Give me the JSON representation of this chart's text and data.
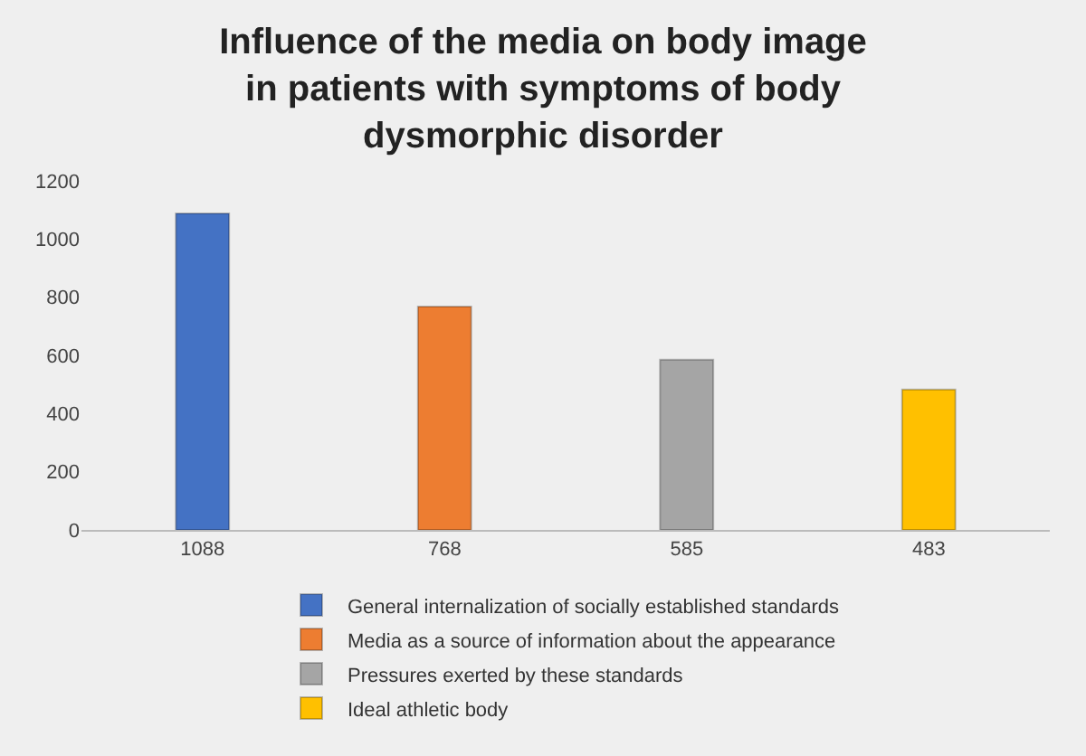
{
  "chart_data": {
    "type": "bar",
    "title": "Influence of the media on body image in patients with symptoms of body dysmorphic disorder",
    "categories": [
      "1088",
      "768",
      "585",
      "483"
    ],
    "series": [
      {
        "name": "General internalization of socially established standards",
        "color": "#4472c4",
        "values": [
          1088,
          null,
          null,
          null
        ]
      },
      {
        "name": "Media as a source of information about the appearance",
        "color": "#ed7d31",
        "values": [
          null,
          768,
          null,
          null
        ]
      },
      {
        "name": "Pressures exerted by these standards",
        "color": "#a5a5a5",
        "values": [
          null,
          null,
          585,
          null
        ]
      },
      {
        "name": "Ideal athletic body",
        "color": "#ffc000",
        "values": [
          null,
          null,
          null,
          483
        ]
      }
    ],
    "ylim": [
      0,
      1200
    ],
    "yticks": [
      0,
      200,
      400,
      600,
      800,
      1000,
      1200
    ],
    "legend": "bottom"
  }
}
